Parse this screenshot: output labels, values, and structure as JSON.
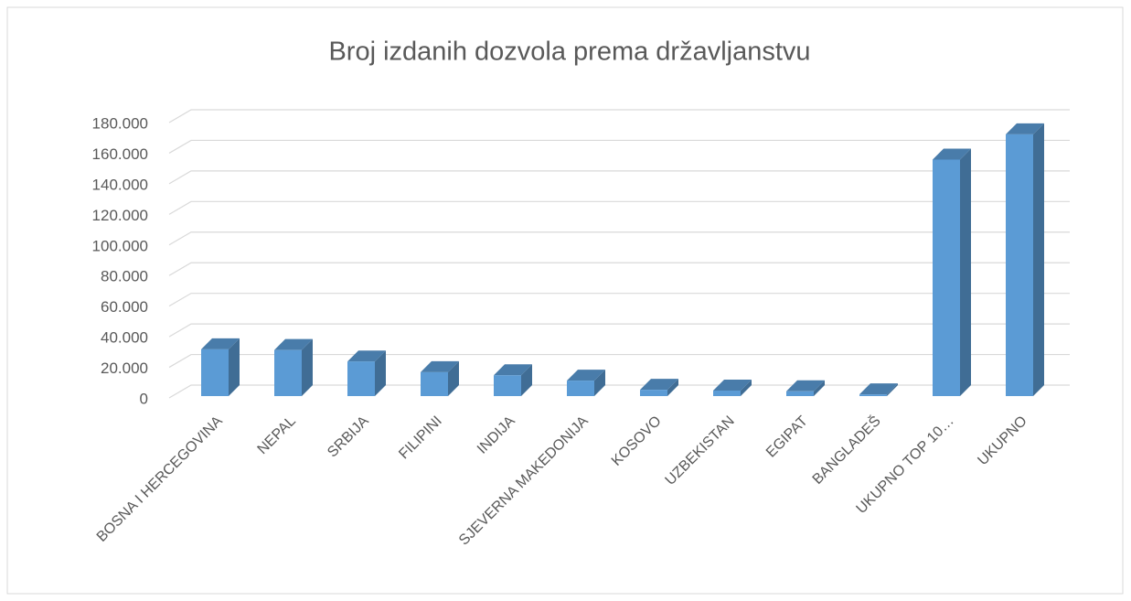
{
  "chart_data": {
    "type": "bar3d",
    "title": "Broj izdanih dozvola prema državljanstvu",
    "categories": [
      "BOSNA I HERCEGOVINA",
      "NEPAL",
      "SRBIJA",
      "FILIPINI",
      "INDIJA",
      "SJEVERNA MAKEDONIJA",
      "KOSOVO",
      "UZBEKISTAN",
      "EGIPAT",
      "BANGLADEŠ",
      "UKUPNO TOP 10…",
      "UKUPNO"
    ],
    "values": [
      33000,
      32500,
      25000,
      18000,
      16000,
      12500,
      6500,
      6000,
      5500,
      3500,
      157000,
      173500
    ],
    "color": "#5b9bd5",
    "ylim": [
      0,
      180000
    ],
    "yticks": [
      0,
      {
        "value": 20000,
        "label": "20.000"
      },
      {
        "value": 40000,
        "label": "40.000"
      },
      {
        "value": 60000,
        "label": "60.000"
      },
      {
        "value": 80000,
        "label": "80.000"
      },
      {
        "value": 100000,
        "label": "100.000"
      },
      {
        "value": 120000,
        "label": "120.000"
      },
      {
        "value": 140000,
        "label": "140.000"
      },
      {
        "value": 160000,
        "label": "160.000"
      },
      {
        "value": 180000,
        "label": "180.000"
      }
    ],
    "grid": true
  }
}
